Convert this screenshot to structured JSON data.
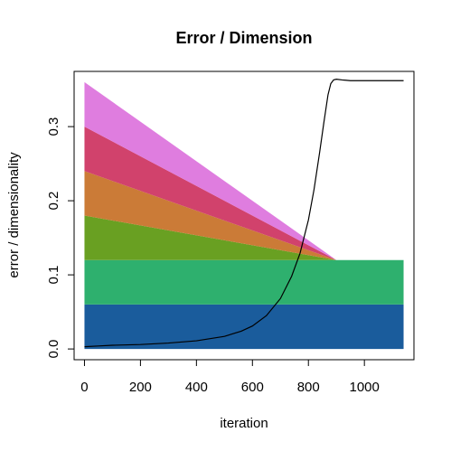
{
  "chart_data": {
    "type": "area",
    "title": "Error / Dimension",
    "xlabel": "iteration",
    "ylabel": "error / dimensionality",
    "xlim": [
      -37,
      1177
    ],
    "ylim": [
      -0.0145,
      0.3745
    ],
    "x_ticks": [
      0,
      200,
      400,
      600,
      800,
      1000
    ],
    "y_ticks": [
      0.0,
      0.1,
      0.2,
      0.3
    ],
    "x_tick_labels": [
      "0",
      "200",
      "400",
      "600",
      "800",
      "1000"
    ],
    "y_tick_labels": [
      "0.0",
      "0.1",
      "0.2",
      "0.3"
    ],
    "grid": false,
    "legend": "none",
    "band_x_start": 0,
    "band_x_join": 900,
    "band_x_end": 1140,
    "bands": [
      {
        "color": "#1a5c9c",
        "lower_start": 0.0,
        "upper_start": 0.06,
        "lower_join": 0.0,
        "upper_join": 0.06
      },
      {
        "color": "#2eb06e",
        "lower_start": 0.06,
        "upper_start": 0.12,
        "lower_join": 0.06,
        "upper_join": 0.12
      },
      {
        "color": "#69a022",
        "lower_start": 0.12,
        "upper_start": 0.18,
        "lower_join": 0.12,
        "upper_join": 0.12
      },
      {
        "color": "#cb7b37",
        "lower_start": 0.18,
        "upper_start": 0.24,
        "lower_join": 0.12,
        "upper_join": 0.12
      },
      {
        "color": "#d1426c",
        "lower_start": 0.24,
        "upper_start": 0.3,
        "lower_join": 0.12,
        "upper_join": 0.12
      },
      {
        "color": "#df7ddf",
        "lower_start": 0.3,
        "upper_start": 0.36,
        "lower_join": 0.12,
        "upper_join": 0.12
      }
    ],
    "line": {
      "color": "#000000",
      "x": [
        0,
        50,
        100,
        200,
        300,
        400,
        500,
        560,
        600,
        650,
        700,
        740,
        770,
        800,
        820,
        840,
        855,
        870,
        880,
        890,
        900,
        920,
        950,
        1000,
        1140
      ],
      "y": [
        0.003,
        0.004,
        0.005,
        0.006,
        0.008,
        0.011,
        0.017,
        0.024,
        0.031,
        0.045,
        0.068,
        0.098,
        0.129,
        0.174,
        0.215,
        0.265,
        0.305,
        0.343,
        0.358,
        0.363,
        0.364,
        0.363,
        0.362,
        0.362,
        0.362
      ]
    }
  }
}
